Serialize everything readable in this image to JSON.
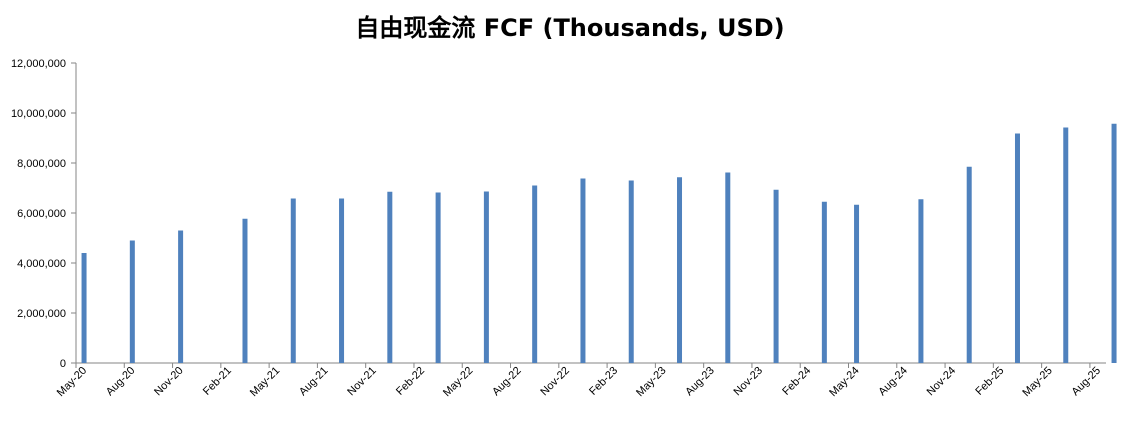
{
  "chart_data": {
    "type": "bar",
    "title": "自由现金流 FCF (Thousands, USD)",
    "xlabel": "",
    "ylabel": "",
    "ylim": [
      0,
      12000000
    ],
    "yticks": [
      "0",
      "2,000,000",
      "4,000,000",
      "6,000,000",
      "8,000,000",
      "10,000,000",
      "12,000,000"
    ],
    "xticks": [
      "May-20",
      "Aug-20",
      "Nov-20",
      "Feb-21",
      "May-21",
      "Aug-21",
      "Nov-21",
      "Feb-22",
      "May-22",
      "Aug-22",
      "Nov-22",
      "Feb-23",
      "May-23",
      "Aug-23",
      "Nov-23",
      "Feb-24",
      "May-24",
      "Aug-24",
      "Nov-24",
      "Feb-25",
      "May-25",
      "Aug-25"
    ],
    "bar_color": "#4f81bd",
    "grid": false,
    "legend": "none",
    "bars": [
      {
        "date": "2020-05",
        "value": 4400000
      },
      {
        "date": "2020-08",
        "value": 4900000
      },
      {
        "date": "2020-11",
        "value": 5300000
      },
      {
        "date": "2021-03",
        "value": 5770000
      },
      {
        "date": "2021-06",
        "value": 6580000
      },
      {
        "date": "2021-09",
        "value": 6580000
      },
      {
        "date": "2021-12",
        "value": 6850000
      },
      {
        "date": "2022-03",
        "value": 6820000
      },
      {
        "date": "2022-06",
        "value": 6860000
      },
      {
        "date": "2022-09",
        "value": 7100000
      },
      {
        "date": "2022-12",
        "value": 7380000
      },
      {
        "date": "2023-03",
        "value": 7300000
      },
      {
        "date": "2023-06",
        "value": 7430000
      },
      {
        "date": "2023-09",
        "value": 7620000
      },
      {
        "date": "2023-12",
        "value": 6930000
      },
      {
        "date": "2024-03",
        "value": 6450000
      },
      {
        "date": "2024-05",
        "value": 6330000
      },
      {
        "date": "2024-09",
        "value": 6550000
      },
      {
        "date": "2024-12",
        "value": 7850000
      },
      {
        "date": "2025-03",
        "value": 9180000
      },
      {
        "date": "2025-06",
        "value": 9420000
      },
      {
        "date": "2025-09",
        "value": 9570000
      }
    ]
  }
}
